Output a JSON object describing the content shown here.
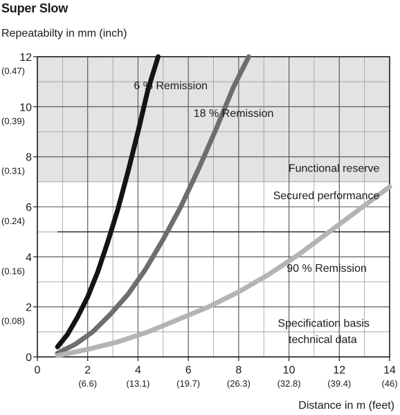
{
  "chart_data": {
    "type": "line",
    "title": "Super Slow",
    "ylabel": "Repeatabilty in mm (inch)",
    "xlabel": "Distance in m (feet)",
    "xlim": [
      0,
      14
    ],
    "ylim": [
      0,
      12
    ],
    "grid": true,
    "x_ticks": [
      {
        "value": 0,
        "label": "0",
        "sub": ""
      },
      {
        "value": 2,
        "label": "2",
        "sub": "(6.6)"
      },
      {
        "value": 4,
        "label": "4",
        "sub": "(13.1)"
      },
      {
        "value": 6,
        "label": "6",
        "sub": "(19.7)"
      },
      {
        "value": 8,
        "label": "8",
        "sub": "(26.3)"
      },
      {
        "value": 10,
        "label": "10",
        "sub": "(32.8)"
      },
      {
        "value": 12,
        "label": "12",
        "sub": "(39.4)"
      },
      {
        "value": 14,
        "label": "14",
        "sub": "(46)"
      }
    ],
    "y_ticks": [
      {
        "value": 0,
        "label": "0",
        "sub": ""
      },
      {
        "value": 2,
        "label": "2",
        "sub": "(0.08)"
      },
      {
        "value": 4,
        "label": "4",
        "sub": "(0.16)"
      },
      {
        "value": 6,
        "label": "6",
        "sub": "(0.24)"
      },
      {
        "value": 8,
        "label": "8",
        "sub": "(0.31)"
      },
      {
        "value": 10,
        "label": "10",
        "sub": "(0.39)"
      },
      {
        "value": 12,
        "label": "12",
        "sub": "(0.47)"
      }
    ],
    "regions": [
      {
        "label": "Functional reserve",
        "y_from": 7,
        "y_to": 12,
        "color": "#e3e3e3"
      }
    ],
    "reference_lines": [
      {
        "y": 5,
        "x_from": 0.8,
        "x_to": 14
      }
    ],
    "annotations": [
      {
        "text": "Functional reserve",
        "x": 13.6,
        "y": 7.4
      },
      {
        "text": "Secured performance",
        "x": 13.6,
        "y": 6.3
      },
      {
        "text": "Specification basis",
        "x": 13.2,
        "y": 1.2
      },
      {
        "text": "technical data",
        "x": 12.7,
        "y": 0.55
      }
    ],
    "series": [
      {
        "name": "6 % Remission",
        "color": "#141414",
        "x": [
          0.8,
          1.2,
          1.6,
          2.0,
          2.4,
          2.8,
          3.2,
          3.6,
          4.0,
          4.4,
          4.8
        ],
        "y": [
          0.4,
          0.9,
          1.6,
          2.4,
          3.4,
          4.6,
          5.9,
          7.4,
          9.0,
          10.7,
          12.0
        ],
        "label_pos": [
          5.3,
          10.7
        ]
      },
      {
        "name": "18 % Remission",
        "color": "#6e6e6e",
        "x": [
          0.8,
          1.5,
          2.2,
          2.9,
          3.6,
          4.3,
          5.0,
          5.7,
          6.4,
          7.1,
          7.8,
          8.4
        ],
        "y": [
          0.15,
          0.5,
          1.0,
          1.7,
          2.5,
          3.5,
          4.7,
          6.0,
          7.5,
          9.1,
          10.8,
          12.0
        ],
        "label_pos": [
          7.8,
          9.6
        ]
      },
      {
        "name": "90 % Remission",
        "color": "#b4b4b4",
        "x": [
          0.8,
          2.0,
          3.2,
          4.4,
          5.6,
          6.8,
          8.0,
          9.2,
          10.4,
          11.6,
          12.8,
          14.0
        ],
        "y": [
          0.05,
          0.3,
          0.6,
          1.0,
          1.5,
          2.0,
          2.6,
          3.3,
          4.1,
          5.0,
          5.9,
          6.8
        ],
        "label_pos": [
          11.5,
          3.4
        ]
      }
    ]
  }
}
